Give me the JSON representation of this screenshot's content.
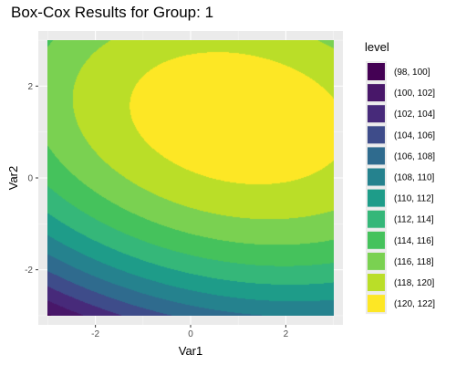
{
  "chart_data": {
    "type": "heatmap",
    "subtype": "filled-contour",
    "title": "Box-Cox Results for Group: 1",
    "xlabel": "Var1",
    "ylabel": "Var2",
    "xlim": [
      -3.2,
      3.2
    ],
    "ylim": [
      -3.2,
      3.2
    ],
    "x_ticks": [
      -2,
      0,
      2
    ],
    "y_ticks": [
      -2,
      0,
      2
    ],
    "grid": true,
    "legend_position": "right",
    "legend_title": "level",
    "surface": {
      "x_range": [
        -3,
        3
      ],
      "y_range": [
        -3,
        3
      ],
      "peak": {
        "x": 1.0,
        "y": 1.3,
        "value": 121.5
      },
      "note_levels": "bands of width 2 from 98 to 122"
    },
    "levels": [
      {
        "label": "(98, 100]",
        "color": "#440154"
      },
      {
        "label": "(100, 102]",
        "color": "#481769"
      },
      {
        "label": "(102, 104]",
        "color": "#472A7A"
      },
      {
        "label": "(104, 106]",
        "color": "#3E4C8A"
      },
      {
        "label": "(106, 108]",
        "color": "#2F6B8E"
      },
      {
        "label": "(108, 110]",
        "color": "#25828E"
      },
      {
        "label": "(110, 112]",
        "color": "#1E9C89"
      },
      {
        "label": "(112, 114]",
        "color": "#35B779"
      },
      {
        "label": "(114, 116]",
        "color": "#45C25C"
      },
      {
        "label": "(116, 118]",
        "color": "#7AD151"
      },
      {
        "label": "(118, 120]",
        "color": "#BADE28"
      },
      {
        "label": "(120, 122]",
        "color": "#FDE725"
      }
    ]
  }
}
